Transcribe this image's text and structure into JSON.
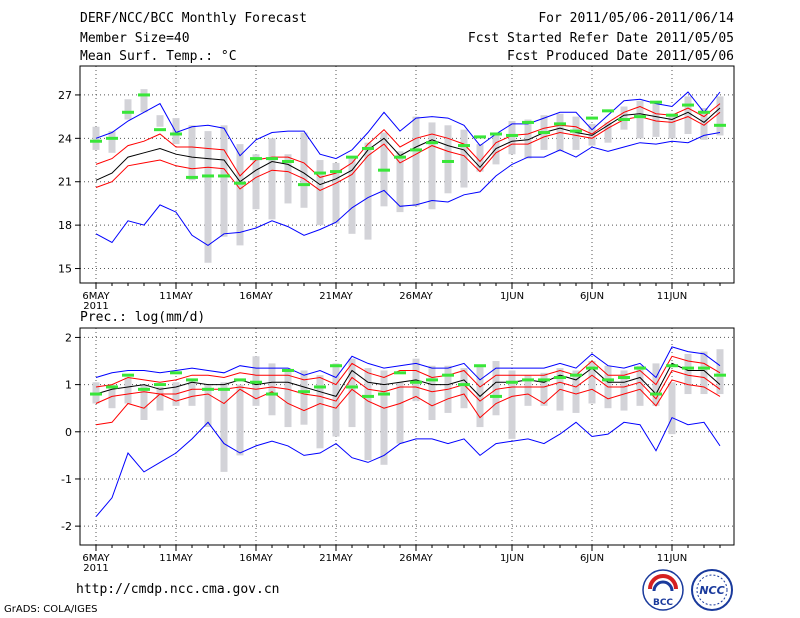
{
  "header": {
    "title": "DERF/NCC/BCC Monthly Forecast",
    "member_size": "Member Size=40",
    "variable": "Mean Surf. Temp.: °C",
    "period": "For 2011/05/06-2011/06/14",
    "fcst_started": "Fcst Started Refer Date 2011/05/05",
    "fcst_produced": "Fcst Produced Date 2011/05/06"
  },
  "footer": {
    "url": "http://cmdp.ncc.cma.gov.cn",
    "grads": "GrADS: COLA/IGES",
    "logo_bcc": "BCC",
    "logo_ncc": "NCC"
  },
  "colors": {
    "max_min": "#0000ff",
    "ensemble_mean": "#000000",
    "spread": "#ff0000",
    "observation": "#39e639",
    "box": "#d3d3d8",
    "grid": "#555555"
  },
  "chart_data": [
    {
      "type": "line",
      "title": "Mean Surf. Temp.: °C",
      "days": 40,
      "x_tick_labels": [
        "6MAY",
        "11MAY",
        "16MAY",
        "21MAY",
        "26MAY",
        "1JUN",
        "6JUN",
        "11JUN"
      ],
      "x_tick_day_index": [
        0,
        5,
        10,
        15,
        20,
        26,
        31,
        36
      ],
      "year_label": "2011",
      "ylim": [
        14,
        29
      ],
      "yticks": [
        15,
        18,
        21,
        24,
        27
      ],
      "series": [
        {
          "name": "max",
          "values": [
            24.0,
            24.4,
            25.2,
            25.8,
            26.4,
            24.4,
            24.8,
            24.9,
            24.7,
            22.8,
            23.9,
            24.4,
            24.5,
            24.5,
            22.9,
            22.6,
            23.2,
            24.4,
            25.8,
            24.5,
            25.4,
            25.5,
            25.4,
            24.9,
            23.5,
            24.3,
            25.0,
            25.0,
            25.4,
            25.8,
            25.8,
            24.6,
            25.6,
            26.6,
            26.7,
            26.4,
            26.2,
            27.2,
            25.8,
            27.2
          ]
        },
        {
          "name": "upper",
          "values": [
            22.2,
            22.6,
            23.5,
            23.8,
            24.3,
            23.4,
            23.4,
            23.3,
            23.2,
            21.4,
            22.5,
            22.7,
            22.7,
            22.3,
            21.3,
            21.6,
            22.3,
            23.6,
            24.6,
            23.4,
            24.0,
            24.3,
            24.0,
            23.6,
            22.4,
            23.7,
            24.2,
            24.3,
            24.7,
            24.9,
            24.8,
            24.3,
            25.1,
            25.8,
            26.2,
            25.7,
            25.6,
            26.1,
            25.5,
            26.4
          ]
        },
        {
          "name": "mean",
          "values": [
            21.1,
            21.6,
            22.7,
            23.0,
            23.3,
            22.9,
            22.7,
            22.6,
            22.5,
            21.0,
            21.8,
            22.4,
            22.2,
            21.6,
            20.8,
            21.2,
            21.8,
            23.2,
            24.0,
            22.8,
            23.4,
            23.9,
            23.5,
            23.2,
            22.0,
            23.3,
            23.8,
            23.9,
            24.4,
            24.7,
            24.4,
            24.2,
            24.9,
            25.6,
            25.7,
            25.5,
            25.3,
            25.8,
            25.1,
            26.1
          ]
        },
        {
          "name": "lower",
          "values": [
            20.6,
            21.0,
            22.1,
            22.3,
            22.5,
            22.1,
            21.9,
            22.0,
            21.9,
            20.5,
            21.3,
            21.8,
            21.7,
            21.2,
            20.4,
            20.9,
            21.5,
            22.8,
            23.6,
            22.3,
            22.9,
            23.5,
            23.1,
            22.8,
            21.7,
            23.0,
            23.6,
            23.6,
            24.1,
            24.4,
            24.2,
            24.0,
            24.7,
            25.3,
            25.5,
            25.2,
            25.1,
            25.5,
            24.9,
            25.8
          ]
        },
        {
          "name": "min",
          "values": [
            17.4,
            16.8,
            18.3,
            18.0,
            19.4,
            18.9,
            17.3,
            16.6,
            17.4,
            17.5,
            17.8,
            18.3,
            17.9,
            17.3,
            17.7,
            18.2,
            19.2,
            19.9,
            20.4,
            19.3,
            19.4,
            19.7,
            19.6,
            20.1,
            20.3,
            21.4,
            22.2,
            22.7,
            22.7,
            23.2,
            22.7,
            23.4,
            23.1,
            23.4,
            23.7,
            23.6,
            23.8,
            23.7,
            24.2,
            24.4
          ]
        }
      ],
      "boxes": [
        [
          23.2,
          24.8
        ],
        [
          23.0,
          24.5
        ],
        [
          25.3,
          26.7
        ],
        [
          25.8,
          27.4
        ],
        [
          24.8,
          25.6
        ],
        [
          23.6,
          25.4
        ],
        [
          21.1,
          24.9
        ],
        [
          15.4,
          24.5
        ],
        [
          17.2,
          24.9
        ],
        [
          16.6,
          23.6
        ],
        [
          19.1,
          22.9
        ],
        [
          18.4,
          24.0
        ],
        [
          19.5,
          22.9
        ],
        [
          19.2,
          24.4
        ],
        [
          18.0,
          22.5
        ],
        [
          18.1,
          22.3
        ],
        [
          17.4,
          22.6
        ],
        [
          17.0,
          23.7
        ],
        [
          19.3,
          24.4
        ],
        [
          18.9,
          23.1
        ],
        [
          19.3,
          25.5
        ],
        [
          19.1,
          25.1
        ],
        [
          20.2,
          24.9
        ],
        [
          20.6,
          24.6
        ],
        [
          21.7,
          23.6
        ],
        [
          22.2,
          24.2
        ],
        [
          22.9,
          25.2
        ],
        [
          22.6,
          25.3
        ],
        [
          23.2,
          25.6
        ],
        [
          23.1,
          25.7
        ],
        [
          23.2,
          25.5
        ],
        [
          23.5,
          25.0
        ],
        [
          23.7,
          25.1
        ],
        [
          24.6,
          26.2
        ],
        [
          24.0,
          26.6
        ],
        [
          24.1,
          26.5
        ],
        [
          24.0,
          25.7
        ],
        [
          24.3,
          26.9
        ],
        [
          23.9,
          26.1
        ],
        [
          24.2,
          26.9
        ]
      ],
      "observed": [
        23.8,
        24.0,
        25.8,
        27.0,
        24.6,
        24.3,
        21.3,
        21.4,
        21.4,
        20.9,
        22.6,
        22.6,
        22.4,
        20.8,
        21.6,
        21.7,
        22.7,
        23.3,
        21.8,
        22.7,
        23.2,
        23.7,
        22.4,
        23.5,
        24.1,
        24.3,
        24.2,
        25.1,
        24.4,
        25.0,
        24.5,
        25.4,
        25.9,
        25.3,
        25.5,
        26.5,
        25.6,
        26.3,
        25.8,
        24.9
      ]
    },
    {
      "type": "line",
      "title": "Prec.: log(mm/d)",
      "days": 40,
      "x_tick_labels": [
        "6MAY",
        "11MAY",
        "16MAY",
        "21MAY",
        "26MAY",
        "1JUN",
        "6JUN",
        "11JUN"
      ],
      "x_tick_day_index": [
        0,
        5,
        10,
        15,
        20,
        26,
        31,
        36
      ],
      "year_label": "2011",
      "ylim": [
        -2.4,
        2.2
      ],
      "yticks": [
        -2,
        -1,
        0,
        1,
        2
      ],
      "series": [
        {
          "name": "max",
          "values": [
            1.15,
            1.25,
            1.3,
            1.3,
            1.25,
            1.3,
            1.35,
            1.3,
            1.25,
            1.4,
            1.35,
            1.35,
            1.35,
            1.2,
            1.3,
            1.15,
            1.6,
            1.45,
            1.35,
            1.4,
            1.45,
            1.35,
            1.35,
            1.45,
            1.1,
            1.35,
            1.35,
            1.35,
            1.35,
            1.45,
            1.35,
            1.65,
            1.4,
            1.35,
            1.45,
            1.15,
            1.8,
            1.7,
            1.65,
            1.4
          ]
        },
        {
          "name": "upper",
          "values": [
            0.95,
            1.0,
            1.15,
            1.1,
            1.05,
            1.1,
            1.2,
            1.2,
            1.15,
            1.25,
            1.2,
            1.2,
            1.2,
            1.1,
            1.15,
            1.0,
            1.45,
            1.25,
            1.15,
            1.3,
            1.3,
            1.15,
            1.2,
            1.3,
            0.95,
            1.2,
            1.2,
            1.2,
            1.2,
            1.3,
            1.2,
            1.5,
            1.2,
            1.2,
            1.3,
            1.0,
            1.6,
            1.5,
            1.45,
            1.25
          ]
        },
        {
          "name": "mean",
          "values": [
            0.8,
            0.9,
            0.95,
            1.0,
            0.9,
            0.95,
            1.05,
            1.0,
            1.0,
            1.1,
            1.0,
            1.05,
            1.05,
            0.95,
            0.85,
            0.75,
            1.3,
            1.05,
            1.0,
            1.05,
            1.1,
            1.0,
            1.0,
            1.1,
            0.75,
            1.05,
            1.05,
            1.1,
            1.05,
            1.2,
            1.1,
            1.35,
            1.05,
            1.05,
            1.15,
            0.8,
            1.45,
            1.3,
            1.3,
            1.0
          ]
        },
        {
          "name": "lower",
          "values": [
            0.6,
            0.75,
            0.8,
            0.85,
            0.8,
            0.8,
            0.9,
            0.9,
            0.9,
            0.95,
            0.9,
            0.95,
            0.9,
            0.8,
            0.75,
            0.65,
            1.15,
            0.9,
            0.85,
            0.95,
            0.95,
            0.85,
            0.9,
            1.0,
            0.65,
            0.9,
            0.95,
            0.95,
            0.95,
            1.05,
            0.95,
            1.2,
            0.95,
            0.95,
            1.05,
            0.7,
            1.3,
            1.2,
            1.15,
            0.9
          ]
        },
        {
          "name": "spread_low",
          "values": [
            0.15,
            0.2,
            0.6,
            0.5,
            0.8,
            0.65,
            0.75,
            0.8,
            0.6,
            0.9,
            0.7,
            0.85,
            0.6,
            0.45,
            0.6,
            0.5,
            0.9,
            0.65,
            0.5,
            0.6,
            0.75,
            0.55,
            0.7,
            0.8,
            0.3,
            0.6,
            0.75,
            0.8,
            0.6,
            0.9,
            0.8,
            0.9,
            0.7,
            0.8,
            0.9,
            0.55,
            1.1,
            1.0,
            0.95,
            0.75
          ]
        },
        {
          "name": "min",
          "values": [
            -1.8,
            -1.4,
            -0.45,
            -0.85,
            -0.65,
            -0.45,
            -0.15,
            0.2,
            -0.25,
            -0.45,
            -0.3,
            -0.2,
            -0.3,
            -0.5,
            -0.45,
            -0.25,
            -0.55,
            -0.65,
            -0.5,
            -0.25,
            -0.15,
            -0.15,
            -0.25,
            -0.15,
            -0.5,
            -0.25,
            -0.2,
            -0.15,
            -0.25,
            -0.05,
            0.2,
            -0.1,
            -0.05,
            0.2,
            0.15,
            -0.4,
            0.3,
            0.15,
            0.2,
            -0.3
          ]
        }
      ],
      "boxes": [
        [
          0.6,
          1.05
        ],
        [
          0.5,
          1.0
        ],
        [
          0.6,
          1.15
        ],
        [
          0.25,
          1.0
        ],
        [
          0.45,
          0.95
        ],
        [
          0.55,
          1.05
        ],
        [
          0.55,
          1.1
        ],
        [
          0.1,
          1.0
        ],
        [
          -0.85,
          1.05
        ],
        [
          -0.5,
          1.0
        ],
        [
          0.55,
          1.6
        ],
        [
          0.35,
          1.45
        ],
        [
          0.1,
          1.3
        ],
        [
          0.15,
          1.3
        ],
        [
          -0.35,
          1.2
        ],
        [
          -0.1,
          1.45
        ],
        [
          0.1,
          1.55
        ],
        [
          -0.6,
          1.35
        ],
        [
          -0.7,
          1.3
        ],
        [
          -0.25,
          1.05
        ],
        [
          0.65,
          1.55
        ],
        [
          0.25,
          1.4
        ],
        [
          0.4,
          1.4
        ],
        [
          0.5,
          1.35
        ],
        [
          0.1,
          1.4
        ],
        [
          0.35,
          1.5
        ],
        [
          -0.15,
          1.3
        ],
        [
          0.55,
          1.2
        ],
        [
          0.55,
          1.25
        ],
        [
          0.45,
          1.35
        ],
        [
          0.4,
          1.3
        ],
        [
          0.6,
          1.5
        ],
        [
          0.5,
          1.4
        ],
        [
          0.45,
          1.3
        ],
        [
          0.55,
          1.4
        ],
        [
          0.55,
          1.45
        ],
        [
          -0.05,
          1.05
        ],
        [
          0.8,
          1.65
        ],
        [
          0.8,
          1.7
        ],
        [
          0.8,
          1.75
        ]
      ],
      "observed": [
        0.8,
        0.95,
        1.2,
        0.9,
        1.0,
        1.25,
        1.1,
        0.9,
        0.9,
        1.1,
        1.05,
        0.8,
        1.3,
        0.85,
        0.95,
        1.4,
        0.95,
        0.75,
        0.8,
        1.25,
        1.05,
        1.1,
        1.2,
        1.0,
        1.4,
        0.75,
        1.05,
        1.1,
        1.1,
        1.15,
        1.2,
        1.35,
        1.1,
        1.15,
        1.35,
        0.8,
        1.4,
        1.35,
        1.35,
        1.2
      ]
    }
  ]
}
